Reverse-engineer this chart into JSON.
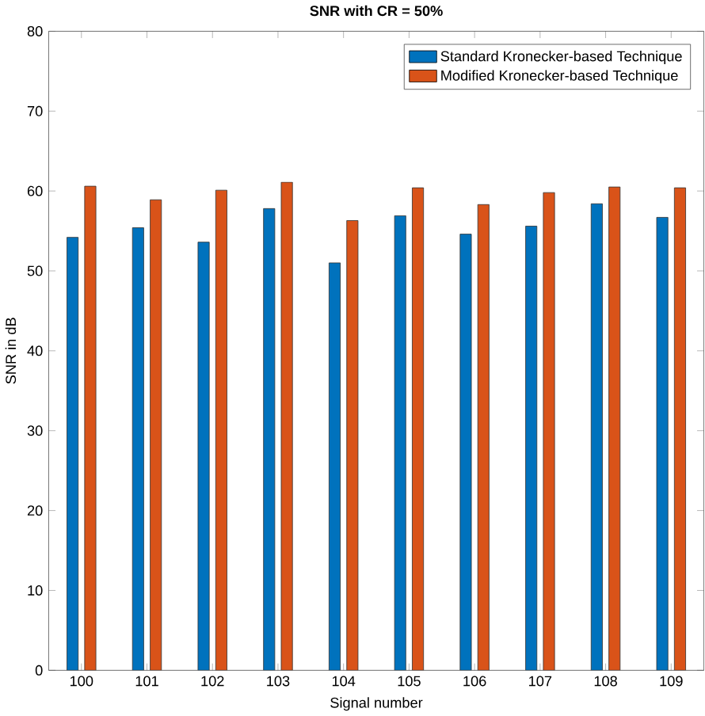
{
  "chart_data": {
    "type": "bar",
    "title": "**SNR with CR = 50%**",
    "xlabel": "Signal number",
    "ylabel": "SNR in dB",
    "categories": [
      "100",
      "101",
      "102",
      "103",
      "104",
      "105",
      "106",
      "107",
      "108",
      "109"
    ],
    "series": [
      {
        "name": "Standard Kronecker-based Technique",
        "color": "#0072bd",
        "values": [
          54.2,
          55.4,
          53.6,
          57.8,
          51.0,
          56.9,
          54.6,
          55.6,
          58.4,
          56.7
        ]
      },
      {
        "name": "Modified Kronecker-based Technique",
        "color": "#d95319",
        "values": [
          60.6,
          58.9,
          60.1,
          61.1,
          56.3,
          60.4,
          58.3,
          59.8,
          60.5,
          60.4
        ]
      }
    ],
    "ylim": [
      0,
      80
    ],
    "yticks": [
      0,
      10,
      20,
      30,
      40,
      50,
      60,
      70,
      80
    ],
    "legend": "top right",
    "grid": false
  }
}
